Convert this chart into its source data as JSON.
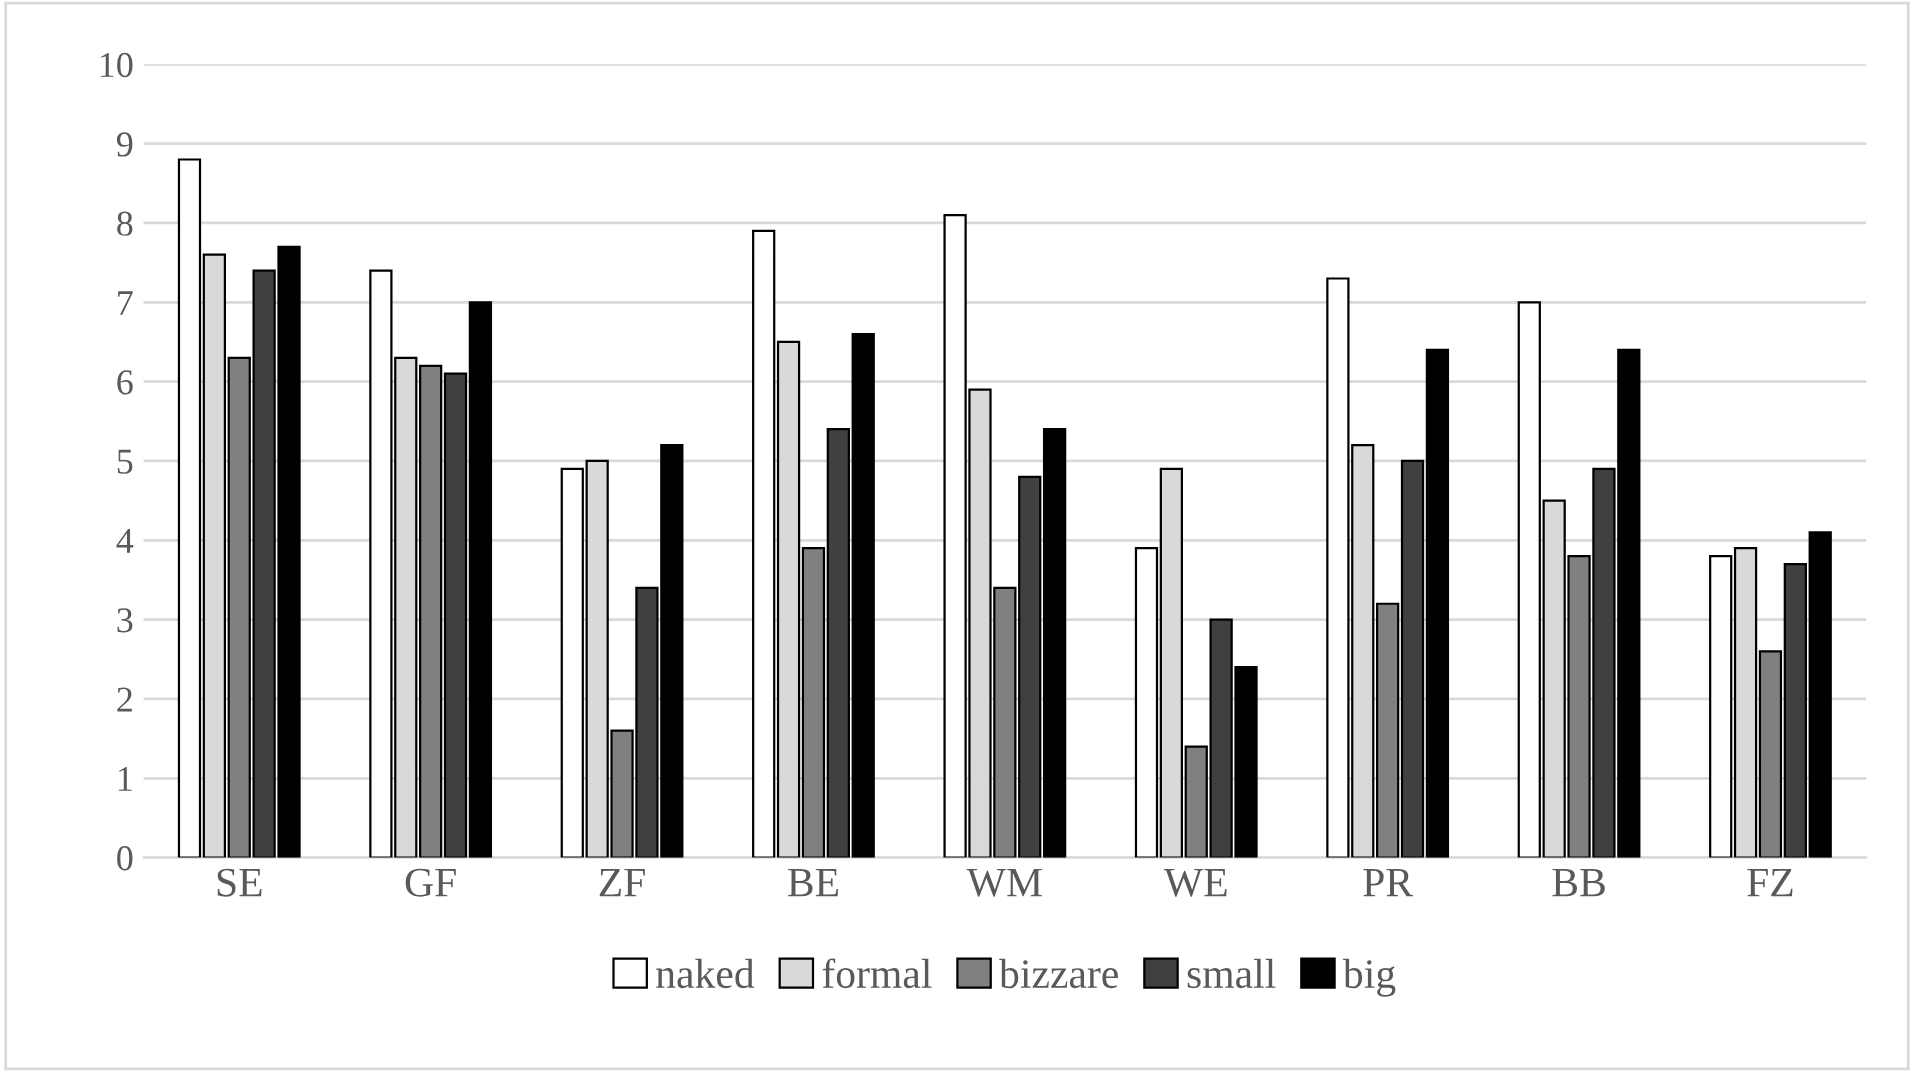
{
  "chart_data": {
    "type": "bar",
    "categories": [
      "SE",
      "GF",
      "ZF",
      "BE",
      "WM",
      "WE",
      "PR",
      "BB",
      "FZ"
    ],
    "series": [
      {
        "name": "naked",
        "color": "#ffffff",
        "values": [
          8.8,
          7.4,
          4.9,
          7.9,
          8.1,
          3.9,
          7.3,
          7.0,
          3.8
        ]
      },
      {
        "name": "formal",
        "color": "#d9d9d9",
        "values": [
          7.6,
          6.3,
          5.0,
          6.5,
          5.9,
          4.9,
          5.2,
          4.5,
          3.9
        ]
      },
      {
        "name": "bizzare",
        "color": "#808080",
        "values": [
          6.3,
          6.2,
          1.6,
          3.9,
          3.4,
          1.4,
          3.2,
          3.8,
          2.6
        ]
      },
      {
        "name": "small",
        "color": "#404040",
        "values": [
          7.4,
          6.1,
          3.4,
          5.4,
          4.8,
          3.0,
          5.0,
          4.9,
          3.7
        ]
      },
      {
        "name": "big",
        "color": "#000000",
        "values": [
          7.7,
          7.0,
          5.2,
          6.6,
          5.4,
          2.4,
          6.4,
          6.4,
          4.1
        ]
      }
    ],
    "ylim": [
      0,
      10
    ],
    "yticks": [
      0,
      1,
      2,
      3,
      4,
      5,
      6,
      7,
      8,
      9,
      10
    ],
    "grid": "y",
    "legend": "bottom"
  }
}
